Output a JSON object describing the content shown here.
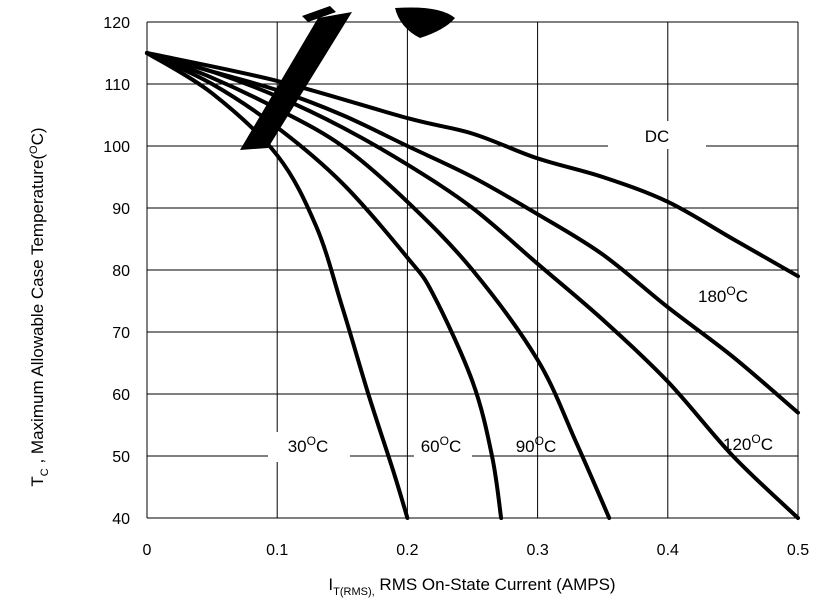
{
  "chart_data": {
    "type": "line",
    "xlim": [
      0,
      0.5
    ],
    "ylim": [
      40,
      120
    ],
    "x_ticks": [
      "0",
      "0.1",
      "0.2",
      "0.3",
      "0.4",
      "0.5"
    ],
    "y_ticks": [
      "40",
      "50",
      "60",
      "70",
      "80",
      "90",
      "100",
      "110",
      "120"
    ],
    "grid": true,
    "xlabel": {
      "symbol": "I",
      "sub": "T(RMS),",
      "rest": " RMS On-State Current (AMPS)"
    },
    "ylabel": {
      "symbol": "T",
      "sub": "C",
      "rest": " , Maximum Allowable Case Temperature(",
      "sup": "O",
      "unit": "C)"
    },
    "series": [
      {
        "name": "DC",
        "points": [
          [
            0,
            115
          ],
          [
            0.1,
            110.5
          ],
          [
            0.2,
            104.5
          ],
          [
            0.25,
            102
          ],
          [
            0.3,
            98
          ],
          [
            0.35,
            95
          ],
          [
            0.4,
            91
          ],
          [
            0.45,
            85
          ],
          [
            0.5,
            79
          ]
        ]
      },
      {
        "name": "180°C",
        "points": [
          [
            0,
            115
          ],
          [
            0.05,
            112
          ],
          [
            0.1,
            109
          ],
          [
            0.15,
            105
          ],
          [
            0.2,
            100
          ],
          [
            0.25,
            95
          ],
          [
            0.3,
            89
          ],
          [
            0.35,
            82.5
          ],
          [
            0.4,
            74
          ],
          [
            0.45,
            66
          ],
          [
            0.5,
            57
          ]
        ]
      },
      {
        "name": "120°C",
        "points": [
          [
            0,
            115
          ],
          [
            0.05,
            112
          ],
          [
            0.1,
            108
          ],
          [
            0.15,
            103
          ],
          [
            0.2,
            97
          ],
          [
            0.25,
            90
          ],
          [
            0.3,
            81
          ],
          [
            0.35,
            72
          ],
          [
            0.4,
            62
          ],
          [
            0.45,
            50
          ],
          [
            0.5,
            40
          ]
        ]
      },
      {
        "name": "90°C",
        "points": [
          [
            0,
            115
          ],
          [
            0.05,
            111
          ],
          [
            0.1,
            106
          ],
          [
            0.15,
            100
          ],
          [
            0.2,
            91
          ],
          [
            0.25,
            80
          ],
          [
            0.3,
            65.5
          ],
          [
            0.33,
            52
          ],
          [
            0.355,
            40
          ]
        ]
      },
      {
        "name": "60°C",
        "points": [
          [
            0,
            115
          ],
          [
            0.05,
            110
          ],
          [
            0.1,
            103
          ],
          [
            0.15,
            94
          ],
          [
            0.2,
            82
          ],
          [
            0.22,
            76
          ],
          [
            0.25,
            62
          ],
          [
            0.265,
            50
          ],
          [
            0.272,
            40
          ]
        ]
      },
      {
        "name": "30°C",
        "points": [
          [
            0,
            115
          ],
          [
            0.05,
            108.5
          ],
          [
            0.1,
            98.5
          ],
          [
            0.13,
            87
          ],
          [
            0.15,
            74
          ],
          [
            0.17,
            60
          ],
          [
            0.19,
            47
          ],
          [
            0.2,
            40
          ]
        ]
      }
    ],
    "curve_labels": [
      {
        "key": "dc",
        "base": "DC",
        "sup": "",
        "unit": ""
      },
      {
        "key": "t180",
        "base": "180",
        "sup": "O",
        "unit": "C"
      },
      {
        "key": "t120",
        "base": "120",
        "sup": "O",
        "unit": "C"
      },
      {
        "key": "t90",
        "base": "90",
        "sup": "O",
        "unit": "C"
      },
      {
        "key": "t60",
        "base": "60",
        "sup": "O",
        "unit": "C"
      },
      {
        "key": "t30",
        "base": "30",
        "sup": "O",
        "unit": "C"
      }
    ]
  }
}
